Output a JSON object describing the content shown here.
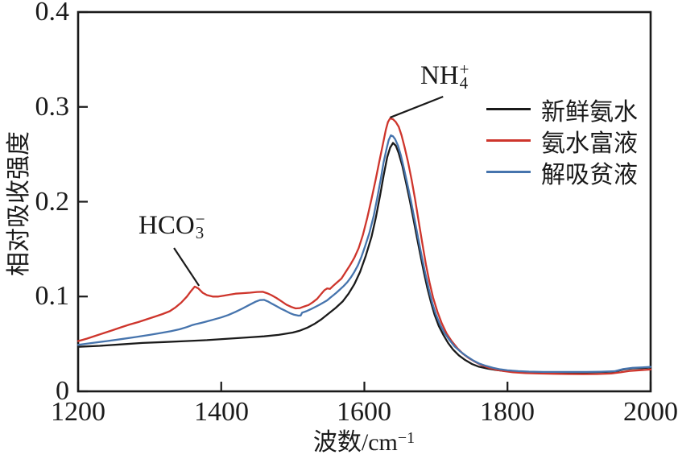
{
  "chart_data": {
    "type": "line",
    "title": "",
    "xlabel": {
      "base": "波数/cm",
      "sup": "−1"
    },
    "ylabel": "相对吸收强度",
    "xlim": [
      1200,
      2000
    ],
    "ylim": [
      0,
      0.4
    ],
    "xticks": [
      1200,
      1400,
      1600,
      1800,
      2000
    ],
    "xticklabels": [
      "1200",
      "1400",
      "1600",
      "1800",
      "2000"
    ],
    "yticks": [
      0.4,
      0.3,
      0.2,
      0.1,
      0
    ],
    "yticklabels": [
      "0.4",
      "0.3",
      "0.2",
      "0.1",
      "0"
    ],
    "grid": false,
    "background_color": "#ffffff",
    "axis_color": "#1a1a1a",
    "legend_position": "upper right",
    "series": [
      {
        "name": "新鲜氨水",
        "color": "#1a1a1a",
        "points": [
          [
            1200,
            0.047
          ],
          [
            1230,
            0.048
          ],
          [
            1260,
            0.0495
          ],
          [
            1290,
            0.051
          ],
          [
            1320,
            0.052
          ],
          [
            1350,
            0.053
          ],
          [
            1380,
            0.054
          ],
          [
            1410,
            0.0555
          ],
          [
            1440,
            0.057
          ],
          [
            1460,
            0.058
          ],
          [
            1480,
            0.0595
          ],
          [
            1500,
            0.062
          ],
          [
            1510,
            0.064
          ],
          [
            1520,
            0.067
          ],
          [
            1530,
            0.071
          ],
          [
            1540,
            0.076
          ],
          [
            1550,
            0.082
          ],
          [
            1560,
            0.088
          ],
          [
            1570,
            0.095
          ],
          [
            1578,
            0.103
          ],
          [
            1586,
            0.113
          ],
          [
            1594,
            0.126
          ],
          [
            1602,
            0.143
          ],
          [
            1610,
            0.163
          ],
          [
            1616,
            0.183
          ],
          [
            1622,
            0.207
          ],
          [
            1627,
            0.228
          ],
          [
            1632,
            0.247
          ],
          [
            1636,
            0.257
          ],
          [
            1640,
            0.262
          ],
          [
            1644,
            0.259
          ],
          [
            1648,
            0.251
          ],
          [
            1653,
            0.238
          ],
          [
            1658,
            0.221
          ],
          [
            1663,
            0.203
          ],
          [
            1668,
            0.184
          ],
          [
            1673,
            0.164
          ],
          [
            1678,
            0.145
          ],
          [
            1683,
            0.126
          ],
          [
            1688,
            0.109
          ],
          [
            1693,
            0.094
          ],
          [
            1698,
            0.081
          ],
          [
            1704,
            0.069
          ],
          [
            1710,
            0.06
          ],
          [
            1717,
            0.051
          ],
          [
            1724,
            0.044
          ],
          [
            1732,
            0.038
          ],
          [
            1740,
            0.0335
          ],
          [
            1750,
            0.029
          ],
          [
            1760,
            0.026
          ],
          [
            1772,
            0.024
          ],
          [
            1784,
            0.0225
          ],
          [
            1796,
            0.0215
          ],
          [
            1810,
            0.0207
          ],
          [
            1830,
            0.0202
          ],
          [
            1850,
            0.02
          ],
          [
            1870,
            0.02
          ],
          [
            1890,
            0.02
          ],
          [
            1910,
            0.02
          ],
          [
            1930,
            0.0203
          ],
          [
            1950,
            0.0208
          ],
          [
            1962,
            0.023
          ],
          [
            1975,
            0.0242
          ],
          [
            1988,
            0.0245
          ],
          [
            2000,
            0.0252
          ]
        ]
      },
      {
        "name": "氨水富液",
        "color": "#ce352c",
        "points": [
          [
            1200,
            0.053
          ],
          [
            1212,
            0.0555
          ],
          [
            1224,
            0.0585
          ],
          [
            1236,
            0.0615
          ],
          [
            1248,
            0.0645
          ],
          [
            1260,
            0.0675
          ],
          [
            1272,
            0.0705
          ],
          [
            1284,
            0.073
          ],
          [
            1296,
            0.076
          ],
          [
            1308,
            0.079
          ],
          [
            1318,
            0.0815
          ],
          [
            1328,
            0.0845
          ],
          [
            1336,
            0.0885
          ],
          [
            1344,
            0.0935
          ],
          [
            1352,
            0.1
          ],
          [
            1358,
            0.106
          ],
          [
            1363,
            0.1105
          ],
          [
            1368,
            0.1085
          ],
          [
            1374,
            0.104
          ],
          [
            1380,
            0.1015
          ],
          [
            1388,
            0.1
          ],
          [
            1396,
            0.1
          ],
          [
            1404,
            0.101
          ],
          [
            1412,
            0.102
          ],
          [
            1420,
            0.103
          ],
          [
            1430,
            0.1035
          ],
          [
            1440,
            0.104
          ],
          [
            1450,
            0.1048
          ],
          [
            1458,
            0.105
          ],
          [
            1464,
            0.1035
          ],
          [
            1470,
            0.1015
          ],
          [
            1477,
            0.0985
          ],
          [
            1484,
            0.095
          ],
          [
            1491,
            0.0915
          ],
          [
            1498,
            0.089
          ],
          [
            1504,
            0.0875
          ],
          [
            1510,
            0.0878
          ],
          [
            1516,
            0.0895
          ],
          [
            1522,
            0.091
          ],
          [
            1528,
            0.094
          ],
          [
            1534,
            0.0975
          ],
          [
            1540,
            0.103
          ],
          [
            1544,
            0.1065
          ],
          [
            1548,
            0.1085
          ],
          [
            1552,
            0.108
          ],
          [
            1556,
            0.111
          ],
          [
            1562,
            0.115
          ],
          [
            1568,
            0.119
          ],
          [
            1574,
            0.126
          ],
          [
            1580,
            0.133
          ],
          [
            1586,
            0.141
          ],
          [
            1592,
            0.151
          ],
          [
            1598,
            0.165
          ],
          [
            1604,
            0.183
          ],
          [
            1610,
            0.203
          ],
          [
            1616,
            0.224
          ],
          [
            1621,
            0.243
          ],
          [
            1626,
            0.261
          ],
          [
            1630,
            0.276
          ],
          [
            1633,
            0.284
          ],
          [
            1636,
            0.288
          ],
          [
            1640,
            0.287
          ],
          [
            1644,
            0.284
          ],
          [
            1648,
            0.279
          ],
          [
            1652,
            0.27
          ],
          [
            1656,
            0.258
          ],
          [
            1661,
            0.242
          ],
          [
            1666,
            0.223
          ],
          [
            1671,
            0.202
          ],
          [
            1676,
            0.179
          ],
          [
            1681,
            0.156
          ],
          [
            1686,
            0.134
          ],
          [
            1691,
            0.115
          ],
          [
            1696,
            0.099
          ],
          [
            1702,
            0.084
          ],
          [
            1708,
            0.072
          ],
          [
            1715,
            0.061
          ],
          [
            1722,
            0.053
          ],
          [
            1730,
            0.0455
          ],
          [
            1738,
            0.0395
          ],
          [
            1746,
            0.035
          ],
          [
            1755,
            0.031
          ],
          [
            1764,
            0.0275
          ],
          [
            1774,
            0.0248
          ],
          [
            1784,
            0.0228
          ],
          [
            1795,
            0.0213
          ],
          [
            1808,
            0.02
          ],
          [
            1825,
            0.0192
          ],
          [
            1845,
            0.0188
          ],
          [
            1865,
            0.0185
          ],
          [
            1885,
            0.0183
          ],
          [
            1905,
            0.0182
          ],
          [
            1925,
            0.0183
          ],
          [
            1945,
            0.0188
          ],
          [
            1958,
            0.02
          ],
          [
            1970,
            0.0215
          ],
          [
            1984,
            0.0222
          ],
          [
            2000,
            0.023
          ]
        ]
      },
      {
        "name": "解吸贫液",
        "color": "#4674ad",
        "points": [
          [
            1200,
            0.049
          ],
          [
            1220,
            0.051
          ],
          [
            1240,
            0.053
          ],
          [
            1260,
            0.055
          ],
          [
            1280,
            0.0572
          ],
          [
            1300,
            0.0595
          ],
          [
            1315,
            0.0615
          ],
          [
            1330,
            0.0635
          ],
          [
            1342,
            0.0655
          ],
          [
            1352,
            0.0678
          ],
          [
            1360,
            0.07
          ],
          [
            1366,
            0.0712
          ],
          [
            1372,
            0.0722
          ],
          [
            1380,
            0.0738
          ],
          [
            1390,
            0.0758
          ],
          [
            1400,
            0.078
          ],
          [
            1410,
            0.0805
          ],
          [
            1420,
            0.0838
          ],
          [
            1430,
            0.0875
          ],
          [
            1440,
            0.0915
          ],
          [
            1448,
            0.0945
          ],
          [
            1454,
            0.0962
          ],
          [
            1460,
            0.0965
          ],
          [
            1466,
            0.0945
          ],
          [
            1472,
            0.092
          ],
          [
            1478,
            0.0895
          ],
          [
            1484,
            0.087
          ],
          [
            1490,
            0.0848
          ],
          [
            1496,
            0.0825
          ],
          [
            1502,
            0.0808
          ],
          [
            1508,
            0.0798
          ],
          [
            1511,
            0.08
          ],
          [
            1513,
            0.083
          ],
          [
            1519,
            0.0845
          ],
          [
            1525,
            0.0865
          ],
          [
            1531,
            0.0888
          ],
          [
            1537,
            0.0912
          ],
          [
            1543,
            0.0938
          ],
          [
            1548,
            0.096
          ],
          [
            1552,
            0.0985
          ],
          [
            1556,
            0.101
          ],
          [
            1561,
            0.104
          ],
          [
            1566,
            0.1075
          ],
          [
            1571,
            0.111
          ],
          [
            1576,
            0.115
          ],
          [
            1581,
            0.12
          ],
          [
            1586,
            0.126
          ],
          [
            1591,
            0.133
          ],
          [
            1596,
            0.142
          ],
          [
            1601,
            0.153
          ],
          [
            1607,
            0.167
          ],
          [
            1613,
            0.185
          ],
          [
            1618,
            0.204
          ],
          [
            1623,
            0.224
          ],
          [
            1627,
            0.242
          ],
          [
            1631,
            0.256
          ],
          [
            1634,
            0.265
          ],
          [
            1637,
            0.27
          ],
          [
            1640,
            0.269
          ],
          [
            1643,
            0.266
          ],
          [
            1647,
            0.259
          ],
          [
            1651,
            0.249
          ],
          [
            1655,
            0.236
          ],
          [
            1660,
            0.219
          ],
          [
            1665,
            0.201
          ],
          [
            1670,
            0.182
          ],
          [
            1675,
            0.162
          ],
          [
            1680,
            0.143
          ],
          [
            1685,
            0.125
          ],
          [
            1690,
            0.108
          ],
          [
            1695,
            0.093
          ],
          [
            1700,
            0.081
          ],
          [
            1706,
            0.07
          ],
          [
            1712,
            0.0615
          ],
          [
            1719,
            0.054
          ],
          [
            1726,
            0.0475
          ],
          [
            1734,
            0.042
          ],
          [
            1742,
            0.0375
          ],
          [
            1751,
            0.033
          ],
          [
            1760,
            0.0295
          ],
          [
            1770,
            0.0268
          ],
          [
            1780,
            0.0247
          ],
          [
            1790,
            0.0232
          ],
          [
            1800,
            0.0222
          ],
          [
            1815,
            0.0213
          ],
          [
            1830,
            0.0208
          ],
          [
            1850,
            0.0205
          ],
          [
            1870,
            0.0205
          ],
          [
            1890,
            0.0205
          ],
          [
            1910,
            0.0205
          ],
          [
            1930,
            0.0207
          ],
          [
            1950,
            0.0212
          ],
          [
            1962,
            0.0235
          ],
          [
            1975,
            0.0248
          ],
          [
            1988,
            0.0252
          ],
          [
            2000,
            0.0258
          ]
        ]
      }
    ],
    "annotations": [
      {
        "base": "HCO",
        "sub": "3",
        "sup": "−",
        "target_wavenumber": 1364,
        "target_value": 0.111,
        "text_pos": [
          1284,
          0.1885
        ],
        "leader": [
          [
            1334,
            0.1512
          ],
          [
            1369,
            0.1113
          ]
        ]
      },
      {
        "base": "NH",
        "sub": "4",
        "sup": "+",
        "target_wavenumber": 1636,
        "target_value": 0.288,
        "text_pos": [
          1678,
          0.3465
        ],
        "leader": [
          [
            1710,
            0.3108
          ],
          [
            1636,
            0.2888
          ]
        ]
      }
    ]
  }
}
